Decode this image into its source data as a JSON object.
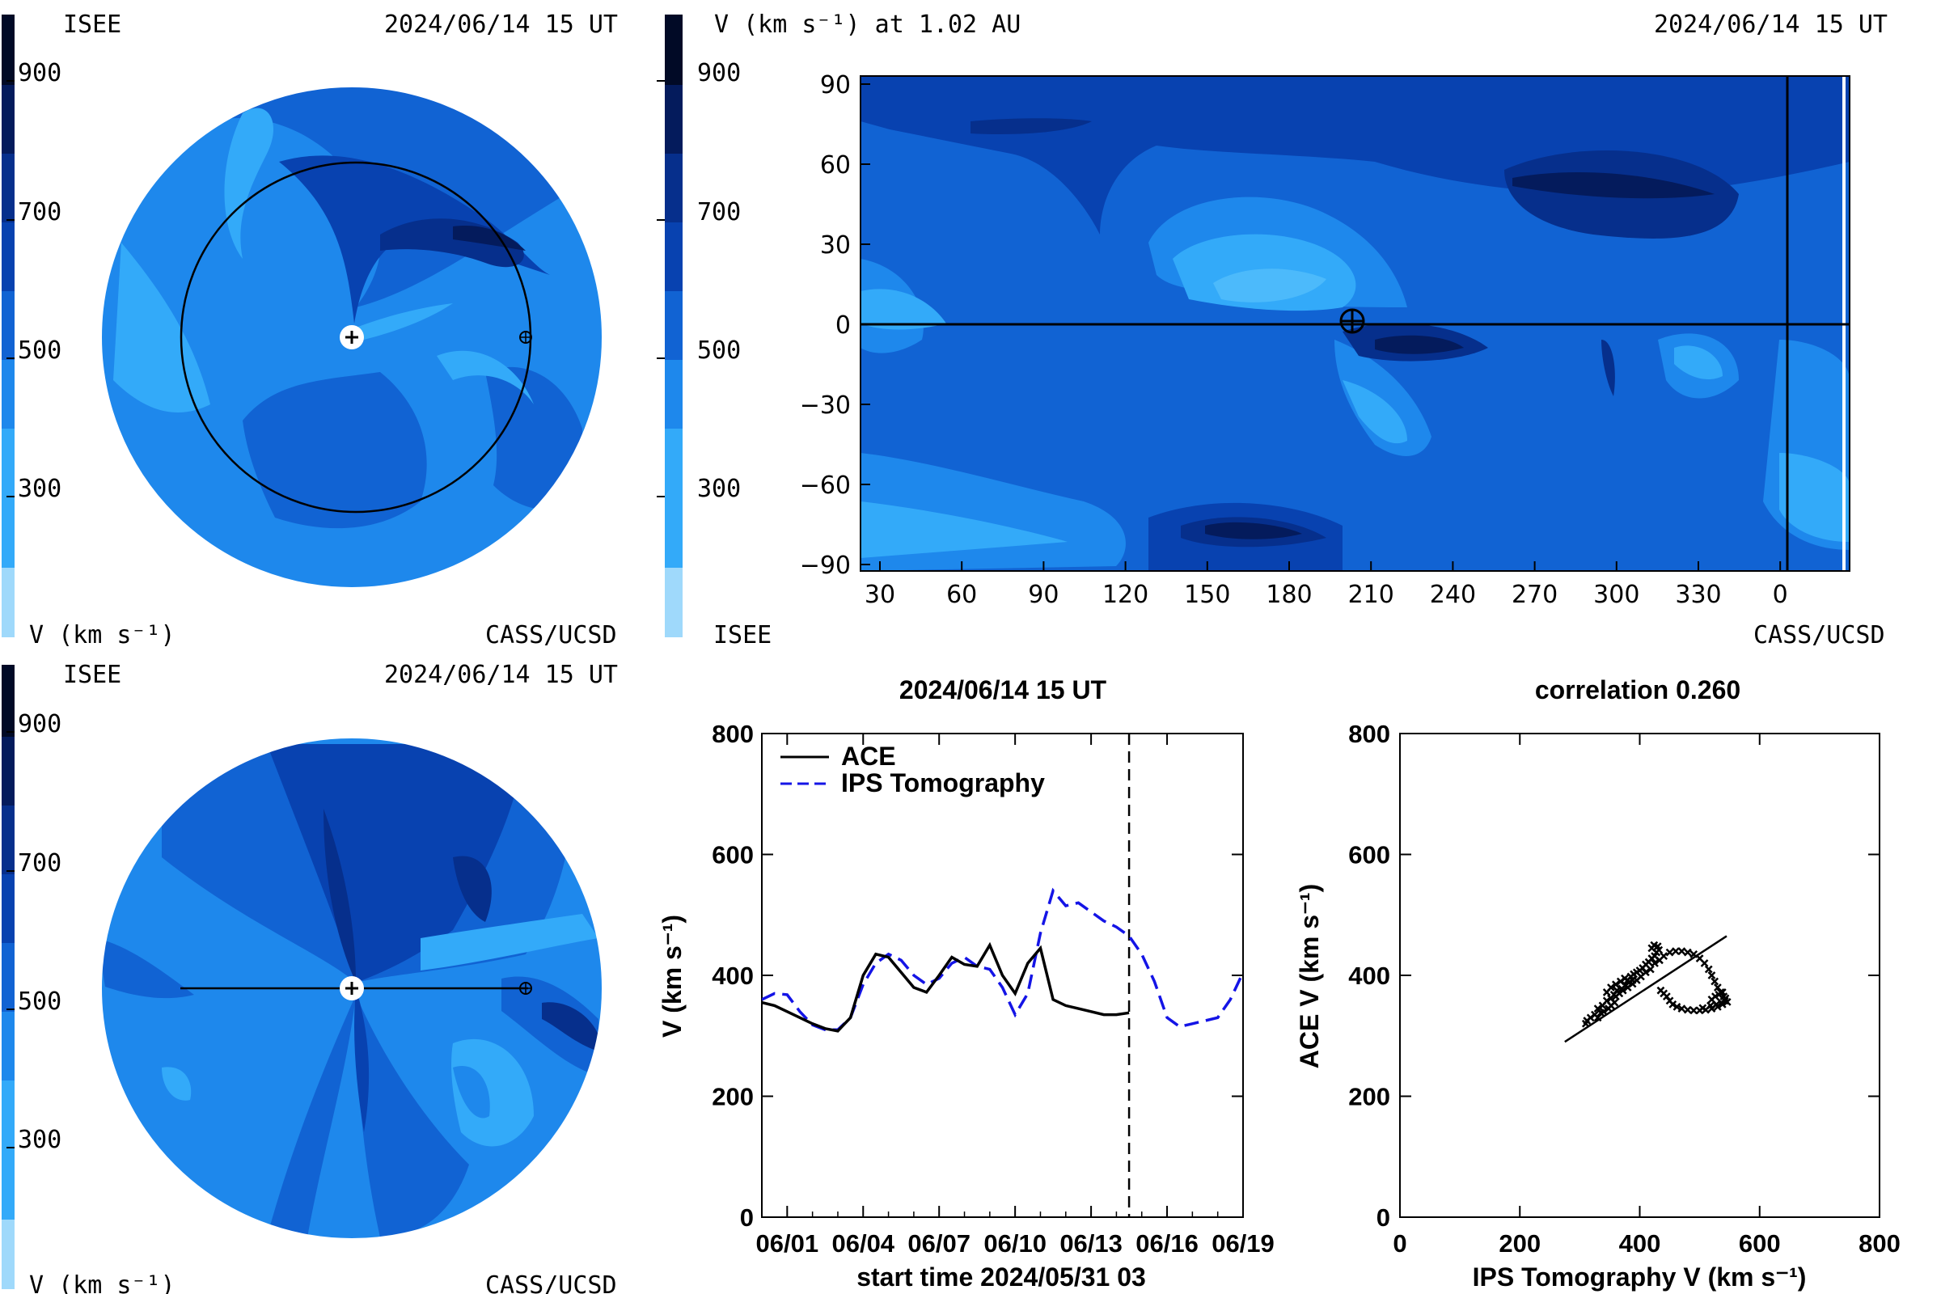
{
  "colors": {
    "levels": [
      "#9fd9fb",
      "#33aaf9",
      "#1e88ec",
      "#1163d3",
      "#0842b0",
      "#062f8c",
      "#041b5c",
      "#010a26"
    ],
    "black": "#000000",
    "ips": "#1414e6"
  },
  "colorbar": {
    "ticks": [
      "900",
      "700",
      "500",
      "300"
    ],
    "unit_label": "V (km s⁻¹)"
  },
  "panel_tl": {
    "org": "ISEE",
    "timestamp": "2024/06/14 15 UT",
    "credit": "CASS/UCSD",
    "unit": "V (km s⁻¹)"
  },
  "panel_bl": {
    "org": "ISEE",
    "timestamp": "2024/06/14 15 UT",
    "credit": "CASS/UCSD",
    "unit": "V (km s⁻¹)"
  },
  "panel_tr": {
    "title": "V (km s⁻¹) at 1.02 AU",
    "timestamp": "2024/06/14 15 UT",
    "org": "ISEE",
    "credit": "CASS/UCSD"
  },
  "chart_data": [
    {
      "type": "heatmap",
      "title": "V (km s⁻¹) at 1.02 AU",
      "x_ticks": [
        "30",
        "60",
        "90",
        "120",
        "150",
        "180",
        "210",
        "240",
        "270",
        "300",
        "330",
        "0"
      ],
      "y_ticks": [
        "90",
        "60",
        "30",
        "0",
        "−30",
        "−60",
        "−90"
      ],
      "ylim": [
        -90,
        90
      ],
      "earth_marker": {
        "longitude": 203,
        "latitude": 0
      },
      "colorbar_ticks": [
        900,
        700,
        500,
        300
      ]
    },
    {
      "type": "line",
      "title": "2024/06/14 15 UT",
      "xlabel": "start time 2024/05/31 03",
      "ylabel": "V (km s⁻¹)",
      "ylim": [
        0,
        800
      ],
      "xlim": [
        0,
        19
      ],
      "y_ticks": [
        "800",
        "600",
        "400",
        "200",
        "0"
      ],
      "x_ticks": [
        "06/01",
        "06/04",
        "06/07",
        "06/10",
        "06/13",
        "06/16",
        "06/19"
      ],
      "x_tick_days": [
        1,
        4,
        7,
        10,
        13,
        16,
        19
      ],
      "now_marker_day": 14.5,
      "series": [
        {
          "name": "ACE",
          "x": [
            0,
            0.5,
            1,
            1.5,
            2,
            2.5,
            3,
            3.5,
            4,
            4.5,
            5,
            5.5,
            6,
            6.5,
            7,
            7.5,
            8,
            8.5,
            9,
            9.5,
            10,
            10.5,
            11,
            11.5,
            12,
            12.5,
            13,
            13.5,
            14,
            14.5
          ],
          "y": [
            355,
            350,
            340,
            330,
            320,
            312,
            308,
            330,
            400,
            435,
            430,
            405,
            380,
            372,
            400,
            430,
            418,
            415,
            450,
            400,
            370,
            420,
            445,
            360,
            350,
            345,
            340,
            335,
            335,
            338
          ]
        },
        {
          "name": "IPS Tomography",
          "x": [
            0,
            0.5,
            1,
            1.5,
            2,
            2.5,
            3,
            3.5,
            4,
            4.5,
            5,
            5.5,
            6,
            6.5,
            7,
            7.5,
            8,
            8.5,
            9,
            9.5,
            10,
            10.5,
            11,
            11.5,
            12,
            12.5,
            13,
            13.5,
            14,
            14.5,
            15,
            15.5,
            16,
            16.5,
            17,
            17.5,
            18,
            18.5,
            19
          ],
          "y": [
            360,
            370,
            368,
            340,
            318,
            310,
            310,
            330,
            385,
            420,
            435,
            425,
            400,
            385,
            395,
            420,
            430,
            415,
            410,
            380,
            335,
            370,
            470,
            540,
            515,
            520,
            505,
            490,
            480,
            465,
            435,
            390,
            330,
            315,
            320,
            325,
            330,
            360,
            405
          ]
        }
      ]
    },
    {
      "type": "scatter",
      "title": "correlation 0.260",
      "xlabel": "IPS Tomography V (km s⁻¹)",
      "ylabel": "ACE V (km s⁻¹)",
      "xlim": [
        0,
        800
      ],
      "ylim": [
        0,
        800
      ],
      "x_ticks": [
        "0",
        "200",
        "400",
        "600",
        "800"
      ],
      "y_ticks": [
        "800",
        "600",
        "400",
        "200",
        "0"
      ],
      "fit_line": {
        "x": [
          275,
          545
        ],
        "y": [
          290,
          465
        ]
      },
      "points": [
        [
          310,
          320
        ],
        [
          312,
          325
        ],
        [
          318,
          330
        ],
        [
          325,
          335
        ],
        [
          330,
          330
        ],
        [
          335,
          338
        ],
        [
          340,
          340
        ],
        [
          348,
          345
        ],
        [
          352,
          350
        ],
        [
          358,
          355
        ],
        [
          345,
          372
        ],
        [
          352,
          380
        ],
        [
          360,
          385
        ],
        [
          368,
          390
        ],
        [
          375,
          395
        ],
        [
          380,
          392
        ],
        [
          385,
          398
        ],
        [
          390,
          402
        ],
        [
          395,
          405
        ],
        [
          400,
          408
        ],
        [
          405,
          412
        ],
        [
          410,
          418
        ],
        [
          415,
          422
        ],
        [
          420,
          428
        ],
        [
          425,
          432
        ],
        [
          428,
          438
        ],
        [
          432,
          442
        ],
        [
          420,
          445
        ],
        [
          424,
          450
        ],
        [
          430,
          448
        ],
        [
          360,
          365
        ],
        [
          366,
          370
        ],
        [
          372,
          375
        ],
        [
          380,
          380
        ],
        [
          388,
          386
        ],
        [
          395,
          392
        ],
        [
          402,
          398
        ],
        [
          410,
          405
        ],
        [
          418,
          410
        ],
        [
          425,
          420
        ],
        [
          433,
          425
        ],
        [
          440,
          432
        ],
        [
          450,
          438
        ],
        [
          460,
          440
        ],
        [
          470,
          440
        ],
        [
          480,
          438
        ],
        [
          490,
          435
        ],
        [
          500,
          428
        ],
        [
          508,
          420
        ],
        [
          515,
          410
        ],
        [
          520,
          400
        ],
        [
          525,
          390
        ],
        [
          530,
          380
        ],
        [
          535,
          372
        ],
        [
          540,
          365
        ],
        [
          542,
          358
        ],
        [
          538,
          352
        ],
        [
          530,
          348
        ],
        [
          520,
          345
        ],
        [
          510,
          343
        ],
        [
          500,
          342
        ],
        [
          490,
          342
        ],
        [
          480,
          343
        ],
        [
          470,
          345
        ],
        [
          462,
          348
        ],
        [
          455,
          352
        ],
        [
          450,
          358
        ],
        [
          445,
          365
        ],
        [
          440,
          370
        ],
        [
          435,
          375
        ],
        [
          520,
          360
        ],
        [
          526,
          365
        ],
        [
          532,
          368
        ],
        [
          538,
          372
        ],
        [
          543,
          362
        ],
        [
          546,
          356
        ],
        [
          536,
          355
        ],
        [
          528,
          352
        ],
        [
          518,
          350
        ],
        [
          505,
          346
        ],
        [
          330,
          345
        ],
        [
          338,
          350
        ],
        [
          345,
          358
        ],
        [
          352,
          362
        ],
        [
          357,
          368
        ],
        [
          362,
          375
        ],
        [
          370,
          378
        ],
        [
          376,
          384
        ],
        [
          382,
          388
        ],
        [
          388,
          392
        ]
      ]
    }
  ]
}
